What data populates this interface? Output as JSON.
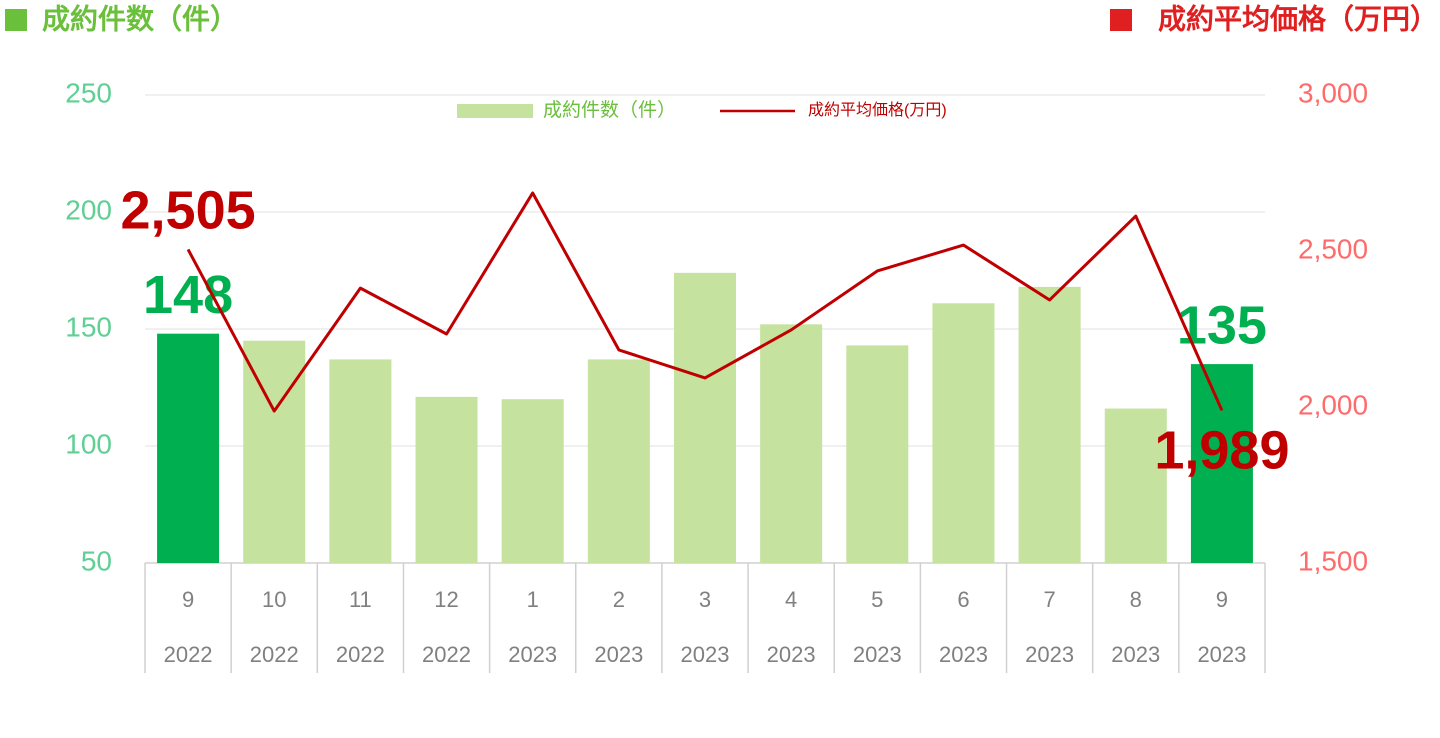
{
  "chart_data": {
    "type": "bar-line",
    "left_axis_title": "成約件数（件）",
    "right_axis_title": "成約平均価格（万円）",
    "categories": [
      "9",
      "10",
      "11",
      "12",
      "1",
      "2",
      "3",
      "4",
      "5",
      "6",
      "7",
      "8",
      "9"
    ],
    "category_years": [
      "2022",
      "2022",
      "2022",
      "2022",
      "2023",
      "2023",
      "2023",
      "2023",
      "2023",
      "2023",
      "2023",
      "2023",
      "2023"
    ],
    "ylim": [
      50,
      250
    ],
    "yticks": [
      50,
      100,
      150,
      200,
      250
    ],
    "y2lim": [
      1500,
      3000
    ],
    "y2ticks": [
      {
        "value": 1500,
        "label": "1,500"
      },
      {
        "value": 2000,
        "label": "2,000"
      },
      {
        "value": 2500,
        "label": "2,500"
      },
      {
        "value": 3000,
        "label": "3,000"
      }
    ],
    "grid": true,
    "series": [
      {
        "name": "成約件数（件）",
        "type": "bar",
        "color": "#c5e29e",
        "colors": [
          "#00b050",
          "#c5e29e",
          "#c5e29e",
          "#c5e29e",
          "#c5e29e",
          "#c5e29e",
          "#c5e29e",
          "#c5e29e",
          "#c5e29e",
          "#c5e29e",
          "#c5e29e",
          "#c5e29e",
          "#00b050"
        ],
        "values": [
          148,
          145,
          137,
          121,
          120,
          137,
          174,
          152,
          143,
          161,
          168,
          116,
          135
        ],
        "value_labels": [
          "148",
          null,
          null,
          null,
          null,
          null,
          null,
          null,
          null,
          null,
          null,
          null,
          "135"
        ]
      },
      {
        "name": "成約平均価格(万円)",
        "type": "line",
        "axis": "y2",
        "color": "#c00000",
        "values": [
          2505,
          1987,
          2381,
          2234,
          2686,
          2183,
          2093,
          2247,
          2436,
          2519,
          2343,
          2612,
          1989
        ],
        "value_labels": [
          "2,505",
          null,
          null,
          null,
          null,
          null,
          null,
          null,
          null,
          null,
          null,
          null,
          "1,989"
        ]
      }
    ]
  }
}
